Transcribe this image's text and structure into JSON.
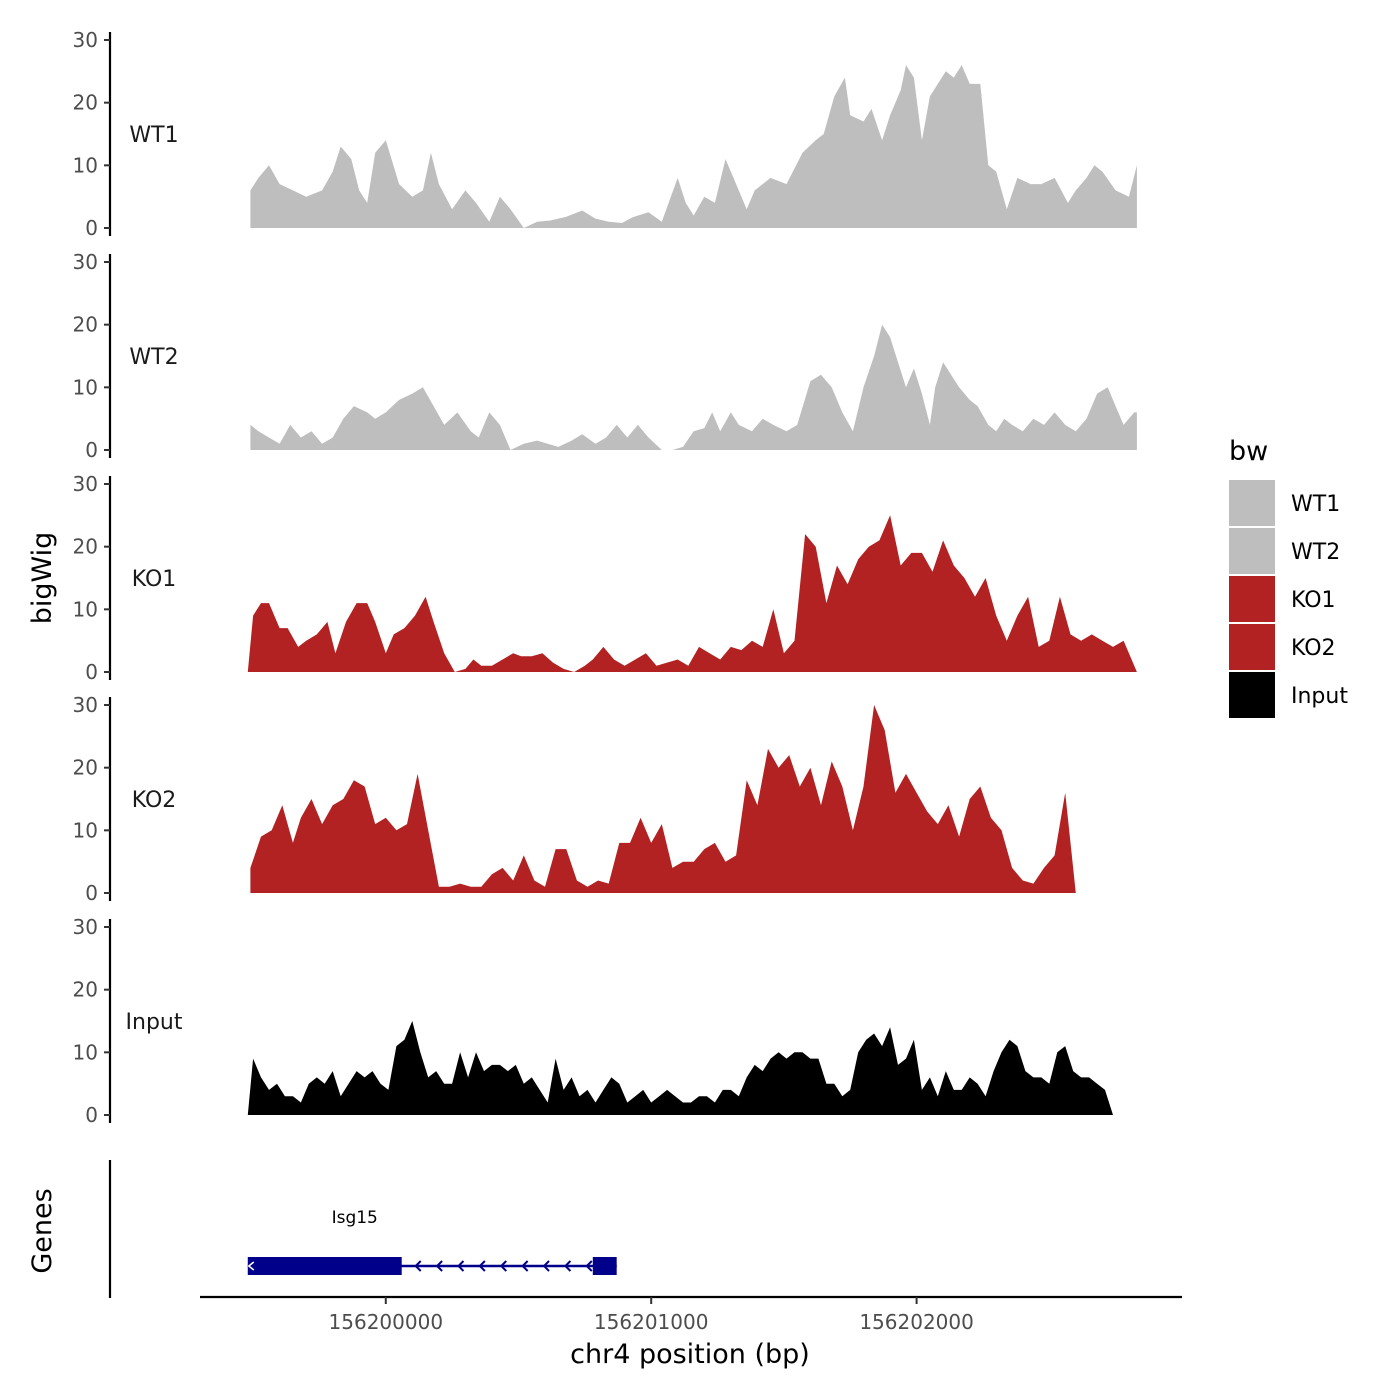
{
  "chart_data": {
    "type": "area",
    "subtype": "genome-browser coverage tracks",
    "ylabel": "bigWig",
    "xlabel": "chr4 position (bp)",
    "ylim": [
      0,
      30
    ],
    "yticks": [
      0,
      10,
      20,
      30
    ],
    "xlim": [
      156199300,
      156203000
    ],
    "xticks": [
      156200000,
      156201000,
      156202000
    ],
    "xtick_labels": [
      "156200000",
      "156201000",
      "156202000"
    ],
    "legend": {
      "title": "bw",
      "placement": "right",
      "entries": [
        {
          "name": "WT1",
          "color": "#bebebe"
        },
        {
          "name": "WT2",
          "color": "#bebebe"
        },
        {
          "name": "KO1",
          "color": "#b22222"
        },
        {
          "name": "KO2",
          "color": "#b22222"
        },
        {
          "name": "Input",
          "color": "#000000"
        }
      ]
    },
    "series": [
      {
        "name": "WT1",
        "color": "#bebebe",
        "x": [
          156199490,
          156199520,
          156199560,
          156199600,
          156199650,
          156199700,
          156199760,
          156199800,
          156199830,
          156199870,
          156199900,
          156199930,
          156199960,
          156200000,
          156200050,
          156200100,
          156200140,
          156200170,
          156200200,
          156200250,
          156200300,
          156200340,
          156200390,
          156200430,
          156200470,
          156200520,
          156200570,
          156200620,
          156200680,
          156200740,
          156200790,
          156200840,
          156200890,
          156200930,
          156200990,
          156201040,
          156201100,
          156201130,
          156201160,
          156201200,
          156201240,
          156201280,
          156201310,
          156201360,
          156201390,
          156201450,
          156201510,
          156201570,
          156201620,
          156201650,
          156201690,
          156201730,
          156201750,
          156201800,
          156201830,
          156201870,
          156201900,
          156201940,
          156201960,
          156201990,
          156202020,
          156202050,
          156202080,
          156202110,
          156202140,
          156202170,
          156202200,
          156202240,
          156202270,
          156202300,
          156202340,
          156202380,
          156202430,
          156202470,
          156202520,
          156202570,
          156202600,
          156202640,
          156202670,
          156202700,
          156202750,
          156202800,
          156202830
        ],
        "values": [
          6,
          8,
          10,
          7,
          6,
          5,
          6,
          9,
          13,
          11,
          6,
          4,
          12,
          14,
          7,
          5,
          6,
          12,
          7,
          3,
          6,
          4,
          1,
          5,
          3,
          0,
          1,
          1.2,
          1.8,
          2.8,
          1.5,
          1,
          0.8,
          1.7,
          2.5,
          1,
          8,
          4,
          2,
          5,
          4,
          11,
          8,
          3,
          6,
          8,
          7,
          12,
          14,
          15,
          21,
          24,
          18,
          17,
          19,
          14,
          18,
          22,
          26,
          24,
          14,
          21,
          23,
          25,
          24,
          26,
          23,
          23,
          10,
          9,
          3,
          8,
          7,
          7,
          8,
          4,
          6,
          8,
          10,
          9,
          6,
          5,
          10
        ],
        "baseline_end_x": 156202830
      },
      {
        "name": "WT2",
        "color": "#bebebe",
        "x": [
          156199490,
          156199520,
          156199560,
          156199600,
          156199640,
          156199680,
          156199720,
          156199760,
          156199800,
          156199840,
          156199880,
          156199930,
          156199960,
          156200000,
          156200050,
          156200100,
          156200140,
          156200180,
          156200220,
          156200270,
          156200320,
          156200350,
          156200390,
          156200430,
          156200470,
          156200520,
          156200570,
          156200610,
          156200650,
          156200700,
          156200740,
          156200790,
          156200830,
          156200870,
          156200910,
          156200950,
          156200990,
          156201040,
          156201080,
          156201120,
          156201160,
          156201200,
          156201230,
          156201260,
          156201300,
          156201330,
          156201380,
          156201420,
          156201460,
          156201510,
          156201550,
          156201600,
          156201640,
          156201680,
          156201720,
          156201760,
          156201800,
          156201840,
          156201870,
          156201900,
          156201930,
          156201960,
          156201990,
          156202020,
          156202050,
          156202070,
          156202100,
          156202130,
          156202160,
          156202200,
          156202230,
          156202270,
          156202300,
          156202330,
          156202360,
          156202400,
          156202440,
          156202480,
          156202520,
          156202560,
          156202600,
          156202640,
          156202680,
          156202720,
          156202750,
          156202780,
          156202820,
          156202830
        ],
        "values": [
          4,
          3,
          2,
          1,
          4,
          2,
          3,
          1,
          2,
          5,
          7,
          6,
          5,
          6,
          8,
          9,
          10,
          7,
          4,
          6,
          3,
          2,
          6,
          4,
          0,
          1,
          1.5,
          1,
          0.5,
          1.5,
          2.5,
          1,
          2,
          4,
          2,
          4,
          2,
          0,
          -0.5,
          0.5,
          3,
          3.5,
          6,
          3,
          6,
          4,
          3,
          5,
          4,
          3,
          4,
          11,
          12,
          10,
          6,
          3,
          10,
          15,
          20,
          18,
          14,
          10,
          13,
          9,
          4,
          10,
          14,
          12,
          10,
          8,
          7,
          4,
          3,
          5,
          4,
          3,
          5,
          4,
          6,
          4,
          3,
          5,
          9,
          10,
          7,
          4,
          6,
          6
        ],
        "baseline_end_x": 156202830
      },
      {
        "name": "KO1",
        "color": "#b22222",
        "x": [
          156199480,
          156199500,
          156199530,
          156199560,
          156199600,
          156199630,
          156199670,
          156199700,
          156199740,
          156199780,
          156199810,
          156199850,
          156199890,
          156199930,
          156199960,
          156200000,
          156200030,
          156200070,
          156200110,
          156200150,
          156200180,
          156200220,
          156200260,
          156200300,
          156200330,
          156200360,
          156200400,
          156200440,
          156200480,
          156200510,
          156200550,
          156200590,
          156200630,
          156200670,
          156200710,
          156200750,
          156200780,
          156200820,
          156200860,
          156200900,
          156200940,
          156200980,
          156201020,
          156201060,
          156201100,
          156201140,
          156201180,
          156201220,
          156201260,
          156201300,
          156201340,
          156201380,
          156201420,
          156201460,
          156201500,
          156201540,
          156201580,
          156201620,
          156201660,
          156201700,
          156201740,
          156201780,
          156201820,
          156201860,
          156201900,
          156201940,
          156201980,
          156202020,
          156202060,
          156202100,
          156202140,
          156202180,
          156202220,
          156202260,
          156202300,
          156202340,
          156202380,
          156202420,
          156202460,
          156202500,
          156202540,
          156202580,
          156202620,
          156202660,
          156202700,
          156202740,
          156202780,
          156202830
        ],
        "values": [
          0,
          9,
          11,
          11,
          7,
          7,
          4,
          5,
          6,
          8,
          3,
          8,
          11,
          11,
          8,
          3,
          6,
          7,
          9,
          12,
          8,
          3,
          0,
          0.5,
          2,
          1,
          1,
          2,
          3,
          2.5,
          2.5,
          3,
          1.5,
          0.5,
          -0.5,
          1,
          2,
          4,
          2,
          1,
          2,
          3,
          1,
          1.5,
          2,
          1,
          4,
          3,
          2,
          4,
          3.5,
          5,
          4,
          10,
          3,
          5,
          22,
          20,
          11,
          17,
          14,
          18,
          20,
          21,
          25,
          17,
          19,
          19,
          16,
          21,
          17,
          15,
          12,
          15,
          9,
          5,
          9,
          12,
          4,
          5,
          12,
          6,
          5,
          6,
          5,
          4,
          5,
          0
        ],
        "baseline_end_x": 156202830
      },
      {
        "name": "KO2",
        "color": "#b22222",
        "x": [
          156199490,
          156199530,
          156199570,
          156199610,
          156199650,
          156199680,
          156199720,
          156199760,
          156199800,
          156199840,
          156199880,
          156199920,
          156199960,
          156200000,
          156200040,
          156200080,
          156200120,
          156200160,
          156200200,
          156200240,
          156200280,
          156200320,
          156200360,
          156200400,
          156200440,
          156200480,
          156200520,
          156200560,
          156200600,
          156200640,
          156200680,
          156200720,
          156200760,
          156200800,
          156200840,
          156200880,
          156200920,
          156200960,
          156201000,
          156201040,
          156201080,
          156201120,
          156201160,
          156201200,
          156201240,
          156201280,
          156201320,
          156201360,
          156201400,
          156201440,
          156201480,
          156201520,
          156201560,
          156201600,
          156201640,
          156201680,
          156201720,
          156201760,
          156201800,
          156201840,
          156201880,
          156201920,
          156201960,
          156202000,
          156202040,
          156202080,
          156202120,
          156202160,
          156202200,
          156202240,
          156202280,
          156202320,
          156202360,
          156202400,
          156202440,
          156202480,
          156202520,
          156202560,
          156202600,
          156202640,
          156202680,
          156202720,
          156202760,
          156202800,
          156202820,
          156202850
        ],
        "values": [
          4,
          9,
          10,
          14,
          8,
          12,
          15,
          11,
          14,
          15,
          18,
          17,
          11,
          12,
          10,
          11,
          19,
          10,
          1,
          1,
          1.5,
          1,
          1,
          3,
          4,
          2,
          6,
          2,
          1,
          7,
          7,
          2,
          1,
          2,
          1.5,
          8,
          8,
          12,
          8,
          11,
          4,
          5,
          5,
          7,
          8,
          5,
          6,
          18,
          14,
          23,
          20,
          22,
          17,
          20,
          14,
          21,
          17,
          10,
          17,
          30,
          26,
          16,
          19,
          16,
          13,
          11,
          14,
          9,
          15,
          17,
          12,
          10,
          4,
          2,
          1.5,
          4,
          6,
          16,
          0,
          0,
          0,
          0,
          0,
          0,
          0,
          0
        ],
        "baseline_end_x": 156202850
      },
      {
        "name": "Input",
        "color": "#000000",
        "x": [
          156199480,
          156199500,
          156199530,
          156199560,
          156199590,
          156199620,
          156199650,
          156199680,
          156199710,
          156199740,
          156199770,
          156199800,
          156199830,
          156199860,
          156199890,
          156199920,
          156199950,
          156199980,
          156200010,
          156200040,
          156200070,
          156200100,
          156200130,
          156200160,
          156200190,
          156200220,
          156200250,
          156200280,
          156200310,
          156200340,
          156200370,
          156200400,
          156200430,
          156200460,
          156200490,
          156200520,
          156200550,
          156200580,
          156200610,
          156200640,
          156200670,
          156200700,
          156200730,
          156200760,
          156200790,
          156200820,
          156200850,
          156200880,
          156200910,
          156200940,
          156200970,
          156201000,
          156201030,
          156201060,
          156201090,
          156201120,
          156201150,
          156201180,
          156201210,
          156201240,
          156201270,
          156201300,
          156201330,
          156201360,
          156201390,
          156201420,
          156201450,
          156201480,
          156201510,
          156201540,
          156201570,
          156201600,
          156201630,
          156201660,
          156201690,
          156201720,
          156201750,
          156201780,
          156201810,
          156201840,
          156201870,
          156201900,
          156201930,
          156201960,
          156201990,
          156202020,
          156202050,
          156202080,
          156202110,
          156202140,
          156202170,
          156202200,
          156202230,
          156202260,
          156202290,
          156202320,
          156202350,
          156202380,
          156202410,
          156202440,
          156202470,
          156202500,
          156202530,
          156202560,
          156202590,
          156202620,
          156202650,
          156202680,
          156202710,
          156202740,
          156202770,
          156202800,
          156202830
        ],
        "values": [
          0,
          9,
          6,
          4,
          5,
          3,
          3,
          2,
          5,
          6,
          5,
          7,
          3,
          5,
          7,
          6,
          7,
          5,
          4,
          11,
          12,
          15,
          10,
          6,
          7,
          5,
          5,
          10,
          6,
          10,
          7,
          8,
          8,
          7,
          8,
          5,
          6,
          4,
          2,
          9,
          4,
          6,
          3,
          4,
          2,
          4,
          6,
          5,
          2,
          3,
          4,
          2,
          3,
          4,
          3,
          2,
          2,
          3,
          3,
          2,
          4,
          4,
          3,
          6,
          8,
          7,
          9,
          10,
          9,
          10,
          10,
          9,
          9,
          5,
          5,
          3,
          4,
          10,
          12,
          13,
          11,
          14,
          8,
          9,
          12,
          4,
          6,
          3,
          7,
          4,
          4,
          6,
          5,
          3,
          7,
          10,
          12,
          11,
          7,
          6,
          6,
          5,
          10,
          11,
          7,
          6,
          6,
          5,
          4,
          0,
          0,
          0,
          0
        ],
        "baseline_end_x": 156202830
      }
    ],
    "genes_track": {
      "label": "Genes",
      "genes": [
        {
          "name": "Isg15",
          "color": "#00008b",
          "start": 156199480,
          "end": 156200870,
          "strand": "-",
          "exons": [
            [
              156199480,
              156200060
            ],
            [
              156200780,
              156200870
            ]
          ]
        }
      ]
    }
  }
}
